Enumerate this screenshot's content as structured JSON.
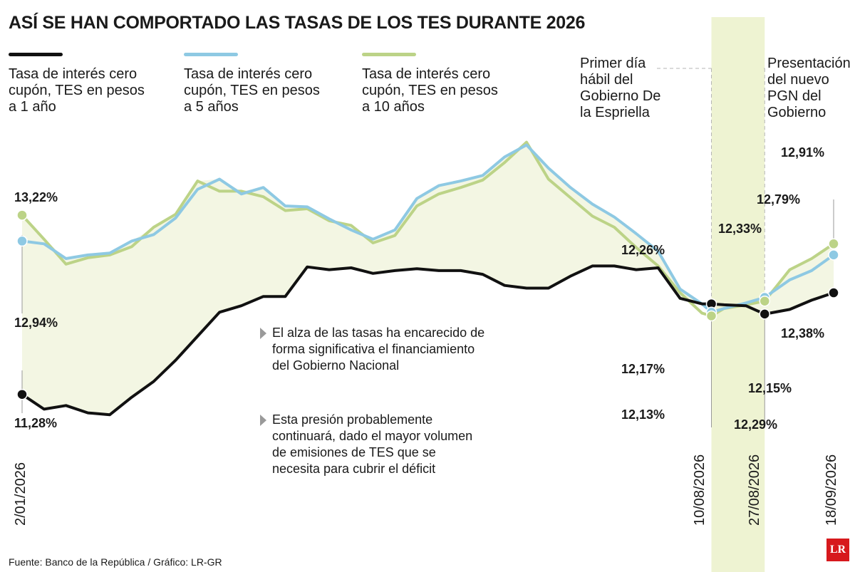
{
  "title": "ASÍ SE HAN COMPORTADO LAS TASAS DE LOS TES DURANTE 2026",
  "source": "Fuente: Banco de la República / Gráfico: LR-GR",
  "logo": "LR",
  "colors": {
    "one_year": "#111111",
    "five_years": "#8ec9e3",
    "ten_years": "#bcd387",
    "area": "#f3f6e3",
    "band": "#eef3d2",
    "text": "#1a1a1a"
  },
  "legend": [
    {
      "label": "Tasa de interés cero cupón, TES en pesos a 1 año",
      "color": "#111111"
    },
    {
      "label": "Tasa de interés cero cupón, TES en pesos a 5 años",
      "color": "#8ec9e3"
    },
    {
      "label": "Tasa de interés cero cupón, TES en pesos a 10 años",
      "color": "#bcd387"
    }
  ],
  "annotations": {
    "gobierno": "Primer día hábil del Gobierno De la Espriella",
    "pgn": "Presentación del nuevo PGN del Gobierno"
  },
  "bullets": [
    "El alza de las tasas ha encarecido de forma significativa el financiamiento del Gobierno Nacional",
    "Esta presión probablemente continuará, dado el mayor volumen de emisiones de TES que se necesita para cubrir el déficit"
  ],
  "value_labels": {
    "start_10y": "13,22%",
    "start_5y": "12,94%",
    "start_1y": "11,28%",
    "aug10_1y": "12,26%",
    "aug10_5y": "12,17%",
    "aug10_10y": "12,13%",
    "aug27_5y": "12,33%",
    "aug27_1y": "12,15%",
    "aug27_10y": "12,29%",
    "sep18_10y": "12,91%",
    "sep18_5y": "12,79%",
    "sep18_1y": "12,38%"
  },
  "date_labels": {
    "start": "2/01/2026",
    "aug10": "10/08/2026",
    "aug27": "27/08/2026",
    "sep18": "18/09/2026"
  },
  "chart_data": {
    "type": "line",
    "title": "ASÍ SE HAN COMPORTADO LAS TASAS DE LOS TES DURANTE 2026",
    "x_range": [
      "2026-01-02",
      "2026-09-18"
    ],
    "ylim": [
      11.0,
      14.2
    ],
    "grid": false,
    "highlight_band": [
      "2026-08-10",
      "2026-08-27"
    ],
    "series": [
      {
        "name": "Tasa de interés cero cupón, TES en pesos a 1 año",
        "points": [
          [
            "2026-01-02",
            11.28
          ],
          [
            "2026-01-09",
            11.12
          ],
          [
            "2026-01-16",
            11.16
          ],
          [
            "2026-01-23",
            11.08
          ],
          [
            "2026-01-30",
            11.06
          ],
          [
            "2026-02-06",
            11.25
          ],
          [
            "2026-02-13",
            11.42
          ],
          [
            "2026-02-20",
            11.65
          ],
          [
            "2026-02-27",
            11.91
          ],
          [
            "2026-03-06",
            12.17
          ],
          [
            "2026-03-13",
            12.24
          ],
          [
            "2026-03-20",
            12.34
          ],
          [
            "2026-03-27",
            12.34
          ],
          [
            "2026-04-03",
            12.66
          ],
          [
            "2026-04-10",
            12.63
          ],
          [
            "2026-04-17",
            12.65
          ],
          [
            "2026-04-24",
            12.59
          ],
          [
            "2026-05-01",
            12.62
          ],
          [
            "2026-05-08",
            12.64
          ],
          [
            "2026-05-15",
            12.62
          ],
          [
            "2026-05-22",
            12.62
          ],
          [
            "2026-05-29",
            12.58
          ],
          [
            "2026-06-05",
            12.46
          ],
          [
            "2026-06-12",
            12.43
          ],
          [
            "2026-06-19",
            12.43
          ],
          [
            "2026-06-26",
            12.56
          ],
          [
            "2026-07-03",
            12.67
          ],
          [
            "2026-07-10",
            12.67
          ],
          [
            "2026-07-17",
            12.63
          ],
          [
            "2026-07-24",
            12.65
          ],
          [
            "2026-07-31",
            12.32
          ],
          [
            "2026-08-07",
            12.26
          ],
          [
            "2026-08-10",
            12.26
          ],
          [
            "2026-08-14",
            12.25
          ],
          [
            "2026-08-21",
            12.24
          ],
          [
            "2026-08-27",
            12.15
          ],
          [
            "2026-09-04",
            12.2
          ],
          [
            "2026-09-11",
            12.3
          ],
          [
            "2026-09-18",
            12.38
          ]
        ]
      },
      {
        "name": "Tasa de interés cero cupón, TES en pesos a 5 años",
        "points": [
          [
            "2026-01-02",
            12.94
          ],
          [
            "2026-01-09",
            12.91
          ],
          [
            "2026-01-16",
            12.75
          ],
          [
            "2026-01-23",
            12.79
          ],
          [
            "2026-01-30",
            12.81
          ],
          [
            "2026-02-06",
            12.94
          ],
          [
            "2026-02-13",
            13.01
          ],
          [
            "2026-02-20",
            13.19
          ],
          [
            "2026-02-27",
            13.5
          ],
          [
            "2026-03-06",
            13.61
          ],
          [
            "2026-03-13",
            13.45
          ],
          [
            "2026-03-20",
            13.52
          ],
          [
            "2026-03-27",
            13.32
          ],
          [
            "2026-04-03",
            13.31
          ],
          [
            "2026-04-10",
            13.18
          ],
          [
            "2026-04-17",
            13.06
          ],
          [
            "2026-04-24",
            12.96
          ],
          [
            "2026-05-01",
            13.06
          ],
          [
            "2026-05-08",
            13.4
          ],
          [
            "2026-05-15",
            13.54
          ],
          [
            "2026-05-22",
            13.59
          ],
          [
            "2026-05-29",
            13.65
          ],
          [
            "2026-06-05",
            13.85
          ],
          [
            "2026-06-12",
            13.98
          ],
          [
            "2026-06-19",
            13.73
          ],
          [
            "2026-06-26",
            13.52
          ],
          [
            "2026-07-03",
            13.34
          ],
          [
            "2026-07-10",
            13.2
          ],
          [
            "2026-07-17",
            13.02
          ],
          [
            "2026-07-24",
            12.83
          ],
          [
            "2026-07-31",
            12.42
          ],
          [
            "2026-08-07",
            12.26
          ],
          [
            "2026-08-10",
            12.17
          ],
          [
            "2026-08-14",
            12.21
          ],
          [
            "2026-08-21",
            12.27
          ],
          [
            "2026-08-27",
            12.33
          ],
          [
            "2026-09-04",
            12.52
          ],
          [
            "2026-09-11",
            12.62
          ],
          [
            "2026-09-18",
            12.79
          ]
        ]
      },
      {
        "name": "Tasa de interés cero cupón, TES en pesos a 10 años",
        "points": [
          [
            "2026-01-02",
            13.22
          ],
          [
            "2026-01-09",
            12.96
          ],
          [
            "2026-01-16",
            12.69
          ],
          [
            "2026-01-23",
            12.76
          ],
          [
            "2026-01-30",
            12.79
          ],
          [
            "2026-02-06",
            12.88
          ],
          [
            "2026-02-13",
            13.09
          ],
          [
            "2026-02-20",
            13.23
          ],
          [
            "2026-02-27",
            13.59
          ],
          [
            "2026-03-06",
            13.48
          ],
          [
            "2026-03-13",
            13.48
          ],
          [
            "2026-03-20",
            13.42
          ],
          [
            "2026-03-27",
            13.27
          ],
          [
            "2026-04-03",
            13.29
          ],
          [
            "2026-04-10",
            13.16
          ],
          [
            "2026-04-17",
            13.11
          ],
          [
            "2026-04-24",
            12.92
          ],
          [
            "2026-05-01",
            13.0
          ],
          [
            "2026-05-08",
            13.32
          ],
          [
            "2026-05-15",
            13.45
          ],
          [
            "2026-05-22",
            13.52
          ],
          [
            "2026-05-29",
            13.6
          ],
          [
            "2026-06-05",
            13.79
          ],
          [
            "2026-06-12",
            14.01
          ],
          [
            "2026-06-19",
            13.61
          ],
          [
            "2026-06-26",
            13.41
          ],
          [
            "2026-07-03",
            13.21
          ],
          [
            "2026-07-10",
            13.09
          ],
          [
            "2026-07-17",
            12.87
          ],
          [
            "2026-07-24",
            12.67
          ],
          [
            "2026-07-31",
            12.38
          ],
          [
            "2026-08-07",
            12.16
          ],
          [
            "2026-08-10",
            12.13
          ],
          [
            "2026-08-14",
            12.21
          ],
          [
            "2026-08-21",
            12.25
          ],
          [
            "2026-08-27",
            12.29
          ],
          [
            "2026-09-04",
            12.63
          ],
          [
            "2026-09-11",
            12.75
          ],
          [
            "2026-09-18",
            12.91
          ]
        ]
      }
    ]
  }
}
